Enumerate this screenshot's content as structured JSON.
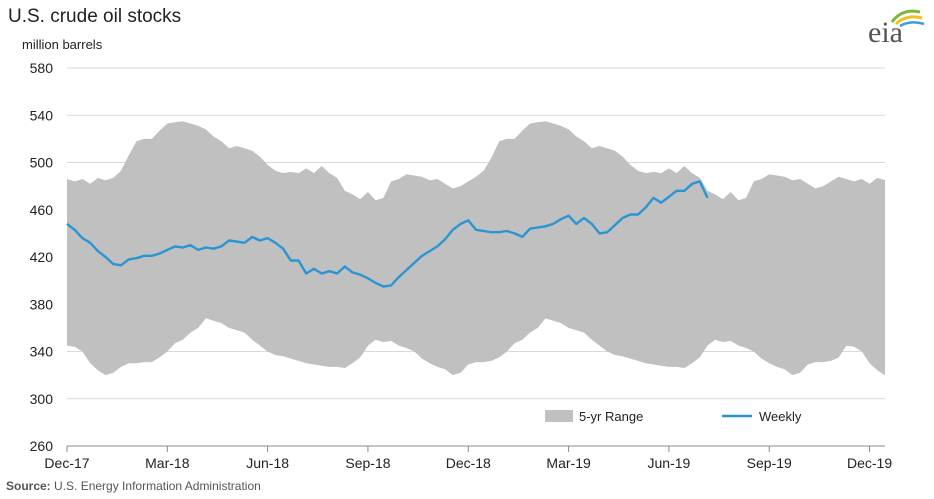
{
  "title": "U.S. crude oil stocks",
  "units": "million barrels",
  "source_label": "Source:",
  "source_text": "U.S. Energy Information Administration",
  "logo_text": "eia",
  "colors": {
    "range": "#c0c0c0",
    "weekly": "#2a95d2",
    "grid": "#d9d9d9",
    "axis": "#888888"
  },
  "chart_data": {
    "type": "area",
    "title": "U.S. crude oil stocks",
    "ylabel": "million barrels",
    "xlabel": "",
    "ylim": [
      260,
      580
    ],
    "yticks": [
      260,
      300,
      340,
      380,
      420,
      460,
      500,
      540,
      580
    ],
    "xticks": [
      "Dec-17",
      "Mar-18",
      "Jun-18",
      "Sep-18",
      "Dec-18",
      "Mar-19",
      "Jun-19",
      "Sep-19",
      "Dec-19"
    ],
    "x_unit": "week",
    "grid": true,
    "legend": {
      "position": "bottom-right",
      "entries": [
        "5-yr Range",
        "Weekly"
      ]
    },
    "series": [
      {
        "name": "5-yr Range",
        "type": "range",
        "x": [
          0,
          1,
          2,
          3,
          4,
          5,
          6,
          7,
          8,
          9,
          10,
          11,
          12,
          13,
          14,
          15,
          16,
          17,
          18,
          19,
          20,
          21,
          22,
          23,
          24,
          25,
          26,
          27,
          28,
          29,
          30,
          31,
          32,
          33,
          34,
          35,
          36,
          37,
          38,
          39,
          40,
          41,
          42,
          43,
          44,
          45,
          46,
          47,
          48,
          49,
          50,
          51,
          52,
          53,
          54,
          55,
          56,
          57,
          58,
          59,
          60,
          61,
          62,
          63,
          64,
          65,
          66,
          67,
          68,
          69,
          70,
          71,
          72,
          73,
          74,
          75,
          76,
          77,
          78,
          79,
          80,
          81,
          82,
          83,
          84,
          85,
          86,
          87,
          88,
          89,
          90,
          91,
          92,
          93,
          94,
          95,
          96,
          97,
          98,
          99,
          100,
          101,
          102,
          103,
          104,
          105,
          106
        ],
        "upper": [
          486,
          484,
          486,
          482,
          487,
          485,
          487,
          493,
          506,
          518,
          520,
          520,
          527,
          533,
          534,
          535,
          533,
          531,
          528,
          522,
          518,
          512,
          514,
          512,
          510,
          505,
          498,
          493,
          491,
          492,
          491,
          495,
          491,
          497,
          491,
          487,
          476,
          473,
          469,
          475,
          468,
          470,
          484,
          486,
          490,
          489,
          488,
          485,
          486,
          482,
          478,
          480,
          484,
          488,
          493,
          504,
          518,
          520,
          520,
          527,
          533,
          534,
          535,
          533,
          531,
          528,
          522,
          518,
          512,
          514,
          512,
          510,
          505,
          498,
          493,
          491,
          492,
          491,
          495,
          491,
          497,
          491,
          487,
          476,
          473,
          469,
          475,
          468,
          470,
          484,
          486,
          490,
          489,
          488,
          485,
          486,
          482,
          478,
          480,
          484,
          488,
          486,
          484,
          486,
          482,
          487,
          485
        ],
        "lower": [
          345,
          344,
          340,
          330,
          324,
          320,
          322,
          327,
          330,
          330,
          331,
          331,
          335,
          340,
          347,
          350,
          356,
          360,
          368,
          366,
          364,
          360,
          358,
          356,
          350,
          345,
          340,
          337,
          336,
          334,
          332,
          330,
          329,
          328,
          327,
          327,
          326,
          330,
          335,
          345,
          350,
          348,
          349,
          345,
          343,
          340,
          334,
          330,
          327,
          325,
          320,
          322,
          329,
          331,
          331,
          332,
          335,
          340,
          347,
          350,
          356,
          360,
          368,
          366,
          364,
          360,
          358,
          356,
          350,
          345,
          340,
          337,
          336,
          334,
          332,
          330,
          329,
          328,
          327,
          327,
          326,
          330,
          335,
          345,
          350,
          348,
          349,
          345,
          343,
          340,
          334,
          330,
          327,
          325,
          320,
          322,
          329,
          331,
          331,
          332,
          335,
          345,
          344,
          340,
          330,
          324,
          320
        ]
      },
      {
        "name": "Weekly",
        "type": "line",
        "x": [
          0,
          1,
          2,
          3,
          4,
          5,
          6,
          7,
          8,
          9,
          10,
          11,
          12,
          13,
          14,
          15,
          16,
          17,
          18,
          19,
          20,
          21,
          22,
          23,
          24,
          25,
          26,
          27,
          28,
          29,
          30,
          31,
          32,
          33,
          34,
          35,
          36,
          37,
          38,
          39,
          40,
          41,
          42,
          43,
          44,
          45,
          46,
          47,
          48,
          49,
          50,
          51,
          52,
          53,
          54,
          55,
          56,
          57,
          58,
          59,
          60,
          61,
          62,
          63,
          64,
          65,
          66,
          67,
          68,
          69,
          70,
          71,
          72,
          73,
          74,
          75,
          76,
          77,
          78,
          79,
          80,
          81,
          82,
          83
        ],
        "values": [
          448,
          443,
          436,
          432,
          425,
          420,
          414,
          413,
          418,
          419,
          421,
          421,
          423,
          426,
          429,
          428,
          430,
          426,
          428,
          427,
          429,
          434,
          433,
          432,
          437,
          434,
          436,
          432,
          427,
          417,
          417,
          406,
          410,
          406,
          408,
          406,
          412,
          407,
          405,
          402,
          398,
          395,
          396,
          403,
          409,
          415,
          421,
          425,
          429,
          435,
          443,
          448,
          451,
          443,
          442,
          441,
          441,
          442,
          440,
          437,
          444,
          445,
          446,
          448,
          452,
          455,
          448,
          453,
          448,
          440,
          441,
          447,
          453,
          456,
          456,
          462,
          470,
          466,
          471,
          476,
          476,
          482,
          484,
          470
        ]
      }
    ]
  }
}
